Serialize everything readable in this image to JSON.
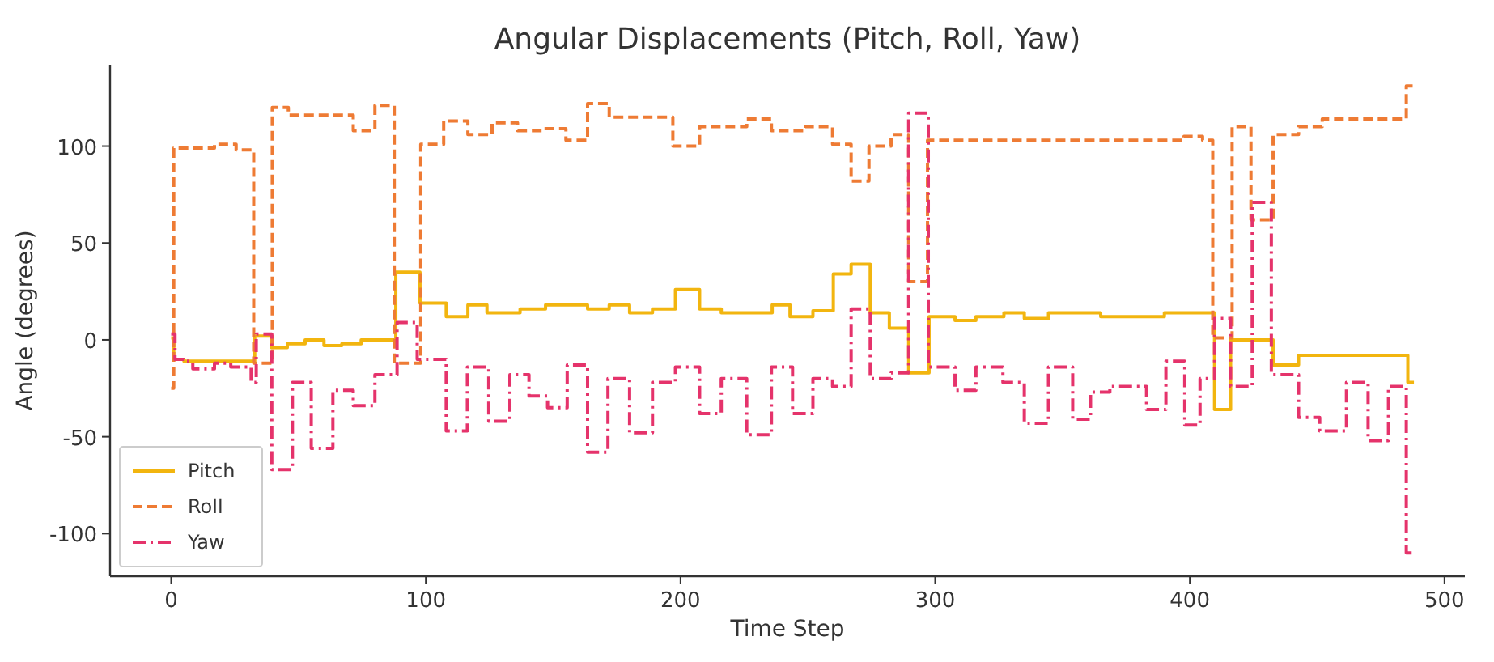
{
  "chart_data": {
    "type": "step",
    "title": "Angular Displacements (Pitch, Roll, Yaw)",
    "xlabel": "Time Step",
    "ylabel": "Angle (degrees)",
    "xlim": [
      -24,
      508
    ],
    "ylim": [
      -122,
      142
    ],
    "xticks": [
      0,
      100,
      200,
      300,
      400,
      500
    ],
    "yticks": [
      -100,
      -50,
      0,
      50,
      100
    ],
    "grid": false,
    "legend": "bottom left",
    "series": [
      {
        "name": "Pitch",
        "color": "#f2b50f",
        "line_style": "solid",
        "x": [
          0,
          1,
          5,
          32.8,
          39.4,
          45.6,
          52.6,
          60,
          67,
          74.6,
          88.2,
          97.7,
          108,
          116.5,
          124,
          137,
          147,
          155.5,
          163.5,
          172,
          180,
          189,
          198,
          207.5,
          216,
          236,
          243,
          252,
          260,
          267,
          274.5,
          282,
          289.6,
          297.6,
          307.8,
          316,
          327,
          335,
          344.5,
          365,
          375.5,
          390,
          409.7,
          416,
          432.7,
          442.7,
          485.6,
          488
        ],
        "values": [
          1,
          -10,
          -11,
          2,
          -4,
          -2,
          0,
          -3,
          -2,
          0,
          35,
          19,
          12,
          18,
          14,
          16,
          18,
          18,
          16,
          18,
          14,
          16,
          26,
          16,
          14,
          18,
          12,
          15,
          34,
          39,
          14,
          6,
          -17,
          12,
          10,
          12,
          14,
          11,
          14,
          12,
          12,
          14,
          -36,
          0,
          -13,
          -8,
          -22,
          -22
        ]
      },
      {
        "name": "Roll",
        "color": "#ee7b34",
        "line_style": "dashed",
        "x": [
          0,
          1,
          17,
          25.5,
          32.4,
          39.7,
          46,
          71.5,
          80,
          87.6,
          98,
          107,
          116.5,
          126,
          136,
          145.5,
          155,
          163.5,
          172,
          197,
          207.5,
          226,
          235.7,
          249,
          259.7,
          267,
          274,
          282.7,
          289.6,
          297,
          397.7,
          405,
          409,
          416.6,
          424,
          432.7,
          442.7,
          452,
          485,
          487.5
        ],
        "values": [
          -25,
          99,
          101,
          98,
          -12,
          120,
          116,
          108,
          121,
          -12,
          101,
          113,
          106,
          112,
          108,
          109,
          103,
          122,
          115,
          100,
          110,
          114,
          108,
          110,
          101,
          82,
          100,
          106,
          30,
          103,
          105,
          103,
          1,
          110,
          62,
          106,
          110,
          114,
          131,
          131
        ]
      },
      {
        "name": "Yaw",
        "color": "#e5336b",
        "line_style": "dashdot",
        "x": [
          0,
          1.5,
          5,
          8.5,
          17,
          23.4,
          31.4,
          33.4,
          39.5,
          47.6,
          55,
          63.5,
          71.5,
          80,
          88.7,
          96.6,
          108,
          116.3,
          124.7,
          133,
          140.5,
          147.8,
          155.5,
          163.5,
          171.5,
          180,
          189,
          198,
          207.5,
          216,
          226,
          235.7,
          244,
          252,
          259.7,
          267,
          274.5,
          282.7,
          289.6,
          297.3,
          307.8,
          316,
          326.6,
          335,
          344.5,
          354,
          361,
          368.6,
          383,
          390.6,
          398,
          404,
          409.7,
          416,
          424.5,
          432,
          442.7,
          451,
          461.5,
          470,
          478,
          485,
          488
        ],
        "values": [
          3,
          -10,
          -11,
          -15,
          -12,
          -14,
          -22,
          3,
          -67,
          -22,
          -56,
          -26,
          -34,
          -18,
          9,
          -10,
          -47,
          -14,
          -42,
          -18,
          -29,
          -35,
          -13,
          -58,
          -20,
          -48,
          -22,
          -14,
          -38,
          -20,
          -49,
          -14,
          -38,
          -20,
          -24,
          16,
          -20,
          -17,
          117,
          -14,
          -26,
          -14,
          -22,
          -43,
          -14,
          -41,
          -27,
          -24,
          -36,
          -11,
          -44,
          -20,
          11,
          -24,
          71,
          -18,
          -40,
          -47,
          -22,
          -52,
          -24,
          -110,
          -110
        ]
      }
    ]
  }
}
